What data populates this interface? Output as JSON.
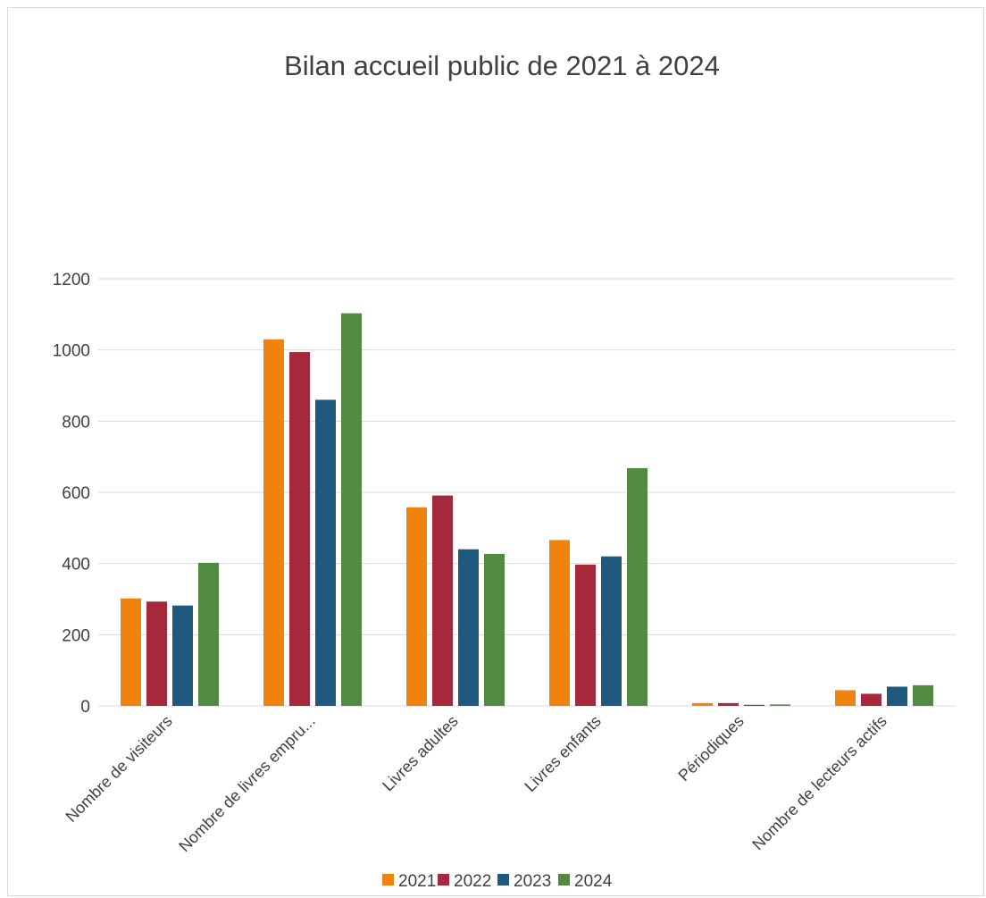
{
  "chart_data": {
    "type": "bar",
    "title": "Bilan accueil public de 2021 à 2024",
    "categories": [
      "Nombre de visiteurs",
      "Nombre de livres empru...",
      "Livres adultes",
      "Livres enfants",
      "Périodiques",
      "Nombre de lecteurs actifs"
    ],
    "series": [
      {
        "name": "2021",
        "color": "#F08210",
        "values": [
          302,
          1030,
          558,
          466,
          8,
          44
        ]
      },
      {
        "name": "2022",
        "color": "#A5293A",
        "values": [
          293,
          994,
          591,
          397,
          8,
          34
        ]
      },
      {
        "name": "2023",
        "color": "#1F5A7E",
        "values": [
          282,
          860,
          440,
          420,
          3,
          54
        ]
      },
      {
        "name": "2024",
        "color": "#528A42",
        "values": [
          402,
          1103,
          427,
          668,
          4,
          58
        ]
      }
    ],
    "yticks": [
      "0",
      "200",
      "400",
      "600",
      "800",
      "1000",
      "1200"
    ],
    "ylim": [
      0,
      1200
    ],
    "grid": true,
    "legend_position": "bottom"
  }
}
